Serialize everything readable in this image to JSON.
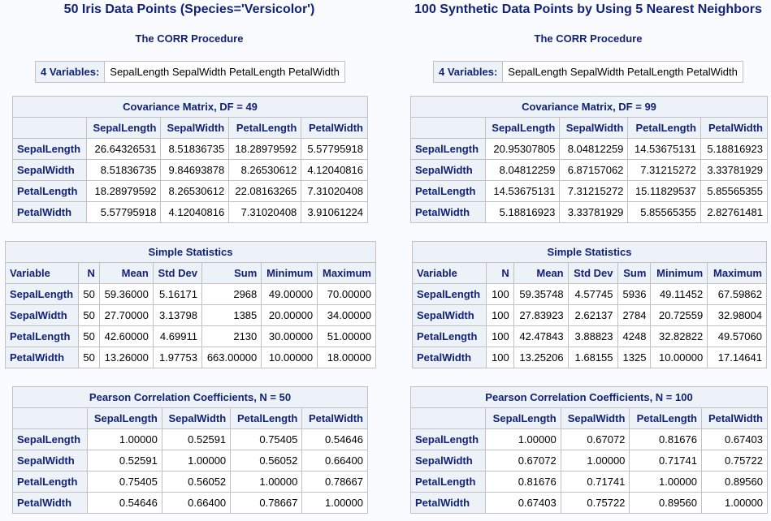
{
  "panels": [
    {
      "title": "50 Iris Data Points (Species='Versicolor')",
      "procedure": "The CORR Procedure",
      "variables": {
        "label": "4 Variables:",
        "value": "SepalLength SepalWidth PetalLength PetalWidth"
      },
      "covariance": {
        "title": "Covariance Matrix, DF = 49",
        "columns": [
          "SepalLength",
          "SepalWidth",
          "PetalLength",
          "PetalWidth"
        ],
        "rows": [
          [
            "SepalLength",
            "26.64326531",
            "8.51836735",
            "18.28979592",
            "5.57795918"
          ],
          [
            "SepalWidth",
            "8.51836735",
            "9.84693878",
            "8.26530612",
            "4.12040816"
          ],
          [
            "PetalLength",
            "18.28979592",
            "8.26530612",
            "22.08163265",
            "7.31020408"
          ],
          [
            "PetalWidth",
            "5.57795918",
            "4.12040816",
            "7.31020408",
            "3.91061224"
          ]
        ]
      },
      "simple_statistics": {
        "title": "Simple Statistics",
        "columns": [
          "Variable",
          "N",
          "Mean",
          "Std Dev",
          "Sum",
          "Minimum",
          "Maximum"
        ],
        "rows": [
          [
            "SepalLength",
            "50",
            "59.36000",
            "5.16171",
            "2968",
            "49.00000",
            "70.00000"
          ],
          [
            "SepalWidth",
            "50",
            "27.70000",
            "3.13798",
            "1385",
            "20.00000",
            "34.00000"
          ],
          [
            "PetalLength",
            "50",
            "42.60000",
            "4.69911",
            "2130",
            "30.00000",
            "51.00000"
          ],
          [
            "PetalWidth",
            "50",
            "13.26000",
            "1.97753",
            "663.00000",
            "10.00000",
            "18.00000"
          ]
        ]
      },
      "pearson": {
        "title": "Pearson Correlation Coefficients, N = 50",
        "columns": [
          "SepalLength",
          "SepalWidth",
          "PetalLength",
          "PetalWidth"
        ],
        "rows": [
          [
            "SepalLength",
            "1.00000",
            "0.52591",
            "0.75405",
            "0.54646"
          ],
          [
            "SepalWidth",
            "0.52591",
            "1.00000",
            "0.56052",
            "0.66400"
          ],
          [
            "PetalLength",
            "0.75405",
            "0.56052",
            "1.00000",
            "0.78667"
          ],
          [
            "PetalWidth",
            "0.54646",
            "0.66400",
            "0.78667",
            "1.00000"
          ]
        ]
      }
    },
    {
      "title": "100 Synthetic Data Points by Using 5 Nearest Neighbors",
      "procedure": "The CORR Procedure",
      "variables": {
        "label": "4 Variables:",
        "value": "SepalLength SepalWidth PetalLength PetalWidth"
      },
      "covariance": {
        "title": "Covariance Matrix, DF = 99",
        "columns": [
          "SepalLength",
          "SepalWidth",
          "PetalLength",
          "PetalWidth"
        ],
        "rows": [
          [
            "SepalLength",
            "20.95307805",
            "8.04812259",
            "14.53675131",
            "5.18816923"
          ],
          [
            "SepalWidth",
            "8.04812259",
            "6.87157062",
            "7.31215272",
            "3.33781929"
          ],
          [
            "PetalLength",
            "14.53675131",
            "7.31215272",
            "15.11829537",
            "5.85565355"
          ],
          [
            "PetalWidth",
            "5.18816923",
            "3.33781929",
            "5.85565355",
            "2.82761481"
          ]
        ]
      },
      "simple_statistics": {
        "title": "Simple Statistics",
        "columns": [
          "Variable",
          "N",
          "Mean",
          "Std Dev",
          "Sum",
          "Minimum",
          "Maximum"
        ],
        "rows": [
          [
            "SepalLength",
            "100",
            "59.35748",
            "4.57745",
            "5936",
            "49.11452",
            "67.59862"
          ],
          [
            "SepalWidth",
            "100",
            "27.83923",
            "2.62137",
            "2784",
            "20.72559",
            "32.98004"
          ],
          [
            "PetalLength",
            "100",
            "42.47843",
            "3.88823",
            "4248",
            "32.82822",
            "49.57060"
          ],
          [
            "PetalWidth",
            "100",
            "13.25206",
            "1.68155",
            "1325",
            "10.00000",
            "17.14641"
          ]
        ]
      },
      "pearson": {
        "title": "Pearson Correlation Coefficients, N = 100",
        "columns": [
          "SepalLength",
          "SepalWidth",
          "PetalLength",
          "PetalWidth"
        ],
        "rows": [
          [
            "SepalLength",
            "1.00000",
            "0.67072",
            "0.81676",
            "0.67403"
          ],
          [
            "SepalWidth",
            "0.67072",
            "1.00000",
            "0.71741",
            "0.75722"
          ],
          [
            "PetalLength",
            "0.81676",
            "0.71741",
            "1.00000",
            "0.89560"
          ],
          [
            "PetalWidth",
            "0.67403",
            "0.75722",
            "0.89560",
            "1.00000"
          ]
        ]
      }
    }
  ]
}
